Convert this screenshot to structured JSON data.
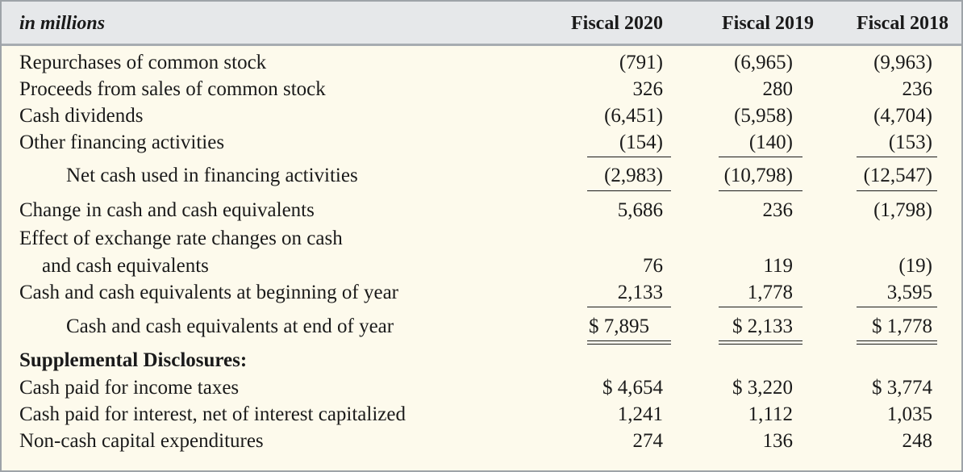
{
  "header": {
    "label": "in millions",
    "col1": "Fiscal 2020",
    "col2": "Fiscal 2019",
    "col3": "Fiscal 2018"
  },
  "rows": {
    "repurchases": {
      "label": "Repurchases of common stock",
      "v1": "(791)",
      "v2": "(6,965)",
      "v3": "(9,963)"
    },
    "proceeds": {
      "label": "Proceeds from sales of common stock",
      "v1": "326",
      "v2": "280",
      "v3": "236"
    },
    "dividends": {
      "label": "Cash dividends",
      "v1": "(6,451)",
      "v2": "(5,958)",
      "v3": "(4,704)"
    },
    "other_fin": {
      "label": "Other financing activities",
      "v1": "(154)",
      "v2": "(140)",
      "v3": "(153)"
    },
    "net_fin": {
      "label": "Net cash used in financing activities",
      "v1": "(2,983)",
      "v2": "(10,798)",
      "v3": "(12,547)"
    },
    "change_cash": {
      "label": "Change in cash and cash equivalents",
      "v1": "5,686",
      "v2": "236",
      "v3": "(1,798)"
    },
    "fx_effect_line1": {
      "label": "Effect of exchange rate changes on cash"
    },
    "fx_effect": {
      "label": "and cash equivalents",
      "v1": "76",
      "v2": "119",
      "v3": "(19)"
    },
    "begin_cash": {
      "label": "Cash and cash equivalents at beginning of year",
      "v1": "2,133",
      "v2": "1,778",
      "v3": "3,595"
    },
    "end_cash": {
      "label": "Cash and cash equivalents at end of year",
      "v1": "$ 7,895",
      "v2": "$ 2,133",
      "v3": "$ 1,778"
    },
    "supplemental": {
      "label": "Supplemental Disclosures:"
    },
    "taxes_paid": {
      "label": "Cash paid for income taxes",
      "v1": "$ 4,654",
      "v2": "$ 3,220",
      "v3": "$ 3,774"
    },
    "interest_paid": {
      "label": "Cash paid for interest, net of interest capitalized",
      "v1": "1,241",
      "v2": "1,112",
      "v3": "1,035"
    },
    "noncash_capex": {
      "label": "Non-cash capital expenditures",
      "v1": "274",
      "v2": "136",
      "v3": "248"
    }
  },
  "colors": {
    "background": "#fdfaec",
    "header_bg": "#e6e8ea",
    "border": "#9ea3a8"
  }
}
